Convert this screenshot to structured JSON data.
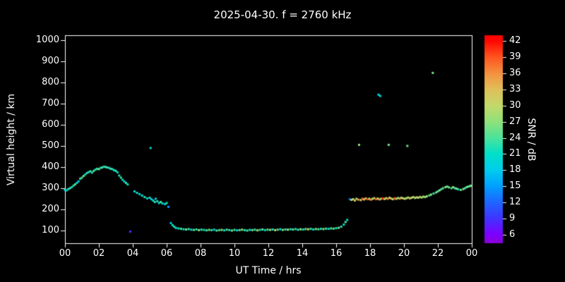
{
  "page": {
    "background": "#000000",
    "text_color": "#ffffff",
    "axis_color": "#ffffff"
  },
  "chart_data": {
    "type": "scatter",
    "title": "2025-04-30. f = 2760 kHz",
    "xlabel": "UT Time / hrs",
    "ylabel": "Virtual height / km",
    "colorbar_label": "SNR / dB",
    "grid": false,
    "xlim": [
      0,
      24
    ],
    "ylim": [
      40,
      1023
    ],
    "xticks": [
      {
        "v": 0,
        "label": "00"
      },
      {
        "v": 2,
        "label": "02"
      },
      {
        "v": 4,
        "label": "04"
      },
      {
        "v": 6,
        "label": "06"
      },
      {
        "v": 8,
        "label": "08"
      },
      {
        "v": 10,
        "label": "10"
      },
      {
        "v": 12,
        "label": "12"
      },
      {
        "v": 14,
        "label": "14"
      },
      {
        "v": 16,
        "label": "16"
      },
      {
        "v": 18,
        "label": "18"
      },
      {
        "v": 20,
        "label": "20"
      },
      {
        "v": 22,
        "label": "22"
      },
      {
        "v": 24,
        "label": "00"
      }
    ],
    "yticks": [
      {
        "v": 100,
        "label": "100"
      },
      {
        "v": 200,
        "label": "200"
      },
      {
        "v": 300,
        "label": "300"
      },
      {
        "v": 400,
        "label": "400"
      },
      {
        "v": 500,
        "label": "500"
      },
      {
        "v": 600,
        "label": "600"
      },
      {
        "v": 700,
        "label": "700"
      },
      {
        "v": 800,
        "label": "800"
      },
      {
        "v": 900,
        "label": "900"
      },
      {
        "v": 1000,
        "label": "1000"
      }
    ],
    "colorbar": {
      "vmin": 4.4,
      "vmax": 43.1,
      "ticks": [
        6,
        9,
        12,
        15,
        18,
        21,
        24,
        27,
        30,
        33,
        36,
        39,
        42
      ],
      "stops": [
        [
          4.4,
          "#8b00d6"
        ],
        [
          6,
          "#7d00ff"
        ],
        [
          9,
          "#4133ff"
        ],
        [
          12,
          "#1f66ff"
        ],
        [
          15,
          "#009fff"
        ],
        [
          18,
          "#00cdee"
        ],
        [
          21,
          "#00e0c8"
        ],
        [
          24,
          "#4ce39b"
        ],
        [
          27,
          "#8fe27a"
        ],
        [
          30,
          "#c3d96a"
        ],
        [
          33,
          "#e0c05a"
        ],
        [
          36,
          "#f49140"
        ],
        [
          39,
          "#ff5520"
        ],
        [
          42,
          "#ff0800"
        ],
        [
          43.1,
          "#ff0000"
        ]
      ]
    },
    "points": [
      [
        0.0,
        292,
        21
      ],
      [
        0.1,
        290,
        19
      ],
      [
        0.2,
        296,
        22
      ],
      [
        0.3,
        300,
        24
      ],
      [
        0.4,
        305,
        20
      ],
      [
        0.5,
        312,
        23
      ],
      [
        0.6,
        318,
        25
      ],
      [
        0.7,
        325,
        21
      ],
      [
        0.8,
        332,
        18
      ],
      [
        0.9,
        345,
        22
      ],
      [
        1.0,
        350,
        24
      ],
      [
        1.1,
        358,
        26
      ],
      [
        1.2,
        365,
        21
      ],
      [
        1.3,
        372,
        23
      ],
      [
        1.4,
        376,
        20
      ],
      [
        1.5,
        380,
        24
      ],
      [
        1.6,
        374,
        22
      ],
      [
        1.7,
        382,
        25
      ],
      [
        1.8,
        388,
        21
      ],
      [
        1.9,
        392,
        23
      ],
      [
        2.0,
        390,
        26
      ],
      [
        2.1,
        396,
        22
      ],
      [
        2.2,
        398,
        24
      ],
      [
        2.3,
        402,
        21
      ],
      [
        2.4,
        400,
        25
      ],
      [
        2.5,
        398,
        23
      ],
      [
        2.6,
        396,
        20
      ],
      [
        2.7,
        392,
        24
      ],
      [
        2.8,
        390,
        22
      ],
      [
        2.9,
        385,
        21
      ],
      [
        3.0,
        382,
        23
      ],
      [
        3.1,
        375,
        20
      ],
      [
        3.2,
        360,
        22
      ],
      [
        3.3,
        350,
        24
      ],
      [
        3.4,
        340,
        21
      ],
      [
        3.5,
        332,
        19
      ],
      [
        3.6,
        325,
        23
      ],
      [
        3.7,
        318,
        21
      ],
      [
        3.85,
        95,
        9
      ],
      [
        4.1,
        285,
        20
      ],
      [
        4.25,
        278,
        22
      ],
      [
        4.4,
        272,
        19
      ],
      [
        4.55,
        265,
        21
      ],
      [
        4.7,
        258,
        23
      ],
      [
        4.85,
        252,
        20
      ],
      [
        5.0,
        255,
        22
      ],
      [
        5.05,
        490,
        20
      ],
      [
        5.1,
        248,
        18
      ],
      [
        5.2,
        242,
        21
      ],
      [
        5.3,
        235,
        23
      ],
      [
        5.35,
        250,
        19
      ],
      [
        5.45,
        238,
        22
      ],
      [
        5.55,
        230,
        20
      ],
      [
        5.65,
        235,
        24
      ],
      [
        5.75,
        228,
        21
      ],
      [
        5.9,
        225,
        19
      ],
      [
        6.0,
        230,
        22
      ],
      [
        6.1,
        212,
        15
      ],
      [
        6.25,
        135,
        18
      ],
      [
        6.35,
        125,
        21
      ],
      [
        6.45,
        118,
        23
      ],
      [
        6.55,
        112,
        20
      ],
      [
        6.7,
        110,
        22
      ],
      [
        6.85,
        108,
        24
      ],
      [
        7.0,
        106,
        21
      ],
      [
        7.15,
        105,
        26
      ],
      [
        7.3,
        107,
        23
      ],
      [
        7.45,
        104,
        20
      ],
      [
        7.6,
        103,
        25
      ],
      [
        7.75,
        105,
        22
      ],
      [
        7.9,
        102,
        27
      ],
      [
        8.05,
        104,
        23
      ],
      [
        8.2,
        103,
        21
      ],
      [
        8.35,
        101,
        24
      ],
      [
        8.5,
        103,
        26
      ],
      [
        8.65,
        102,
        22
      ],
      [
        8.8,
        104,
        20
      ],
      [
        8.95,
        100,
        25
      ],
      [
        9.1,
        102,
        23
      ],
      [
        9.25,
        103,
        27
      ],
      [
        9.4,
        101,
        21
      ],
      [
        9.55,
        104,
        24
      ],
      [
        9.7,
        102,
        22
      ],
      [
        9.85,
        100,
        26
      ],
      [
        10.0,
        103,
        23
      ],
      [
        10.15,
        101,
        20
      ],
      [
        10.3,
        102,
        25
      ],
      [
        10.45,
        104,
        27
      ],
      [
        10.6,
        102,
        22
      ],
      [
        10.75,
        100,
        24
      ],
      [
        10.9,
        103,
        21
      ],
      [
        11.05,
        102,
        26
      ],
      [
        11.2,
        104,
        23
      ],
      [
        11.35,
        101,
        28
      ],
      [
        11.5,
        103,
        22
      ],
      [
        11.65,
        105,
        25
      ],
      [
        11.8,
        102,
        21
      ],
      [
        11.95,
        104,
        24
      ],
      [
        12.1,
        103,
        27
      ],
      [
        12.25,
        105,
        22
      ],
      [
        12.4,
        102,
        30
      ],
      [
        12.55,
        104,
        24
      ],
      [
        12.7,
        106,
        21
      ],
      [
        12.85,
        103,
        26
      ],
      [
        13.0,
        105,
        23
      ],
      [
        13.15,
        104,
        28
      ],
      [
        13.3,
        106,
        22
      ],
      [
        13.45,
        105,
        25
      ],
      [
        13.6,
        107,
        21
      ],
      [
        13.75,
        104,
        24
      ],
      [
        13.9,
        106,
        27
      ],
      [
        14.05,
        105,
        22
      ],
      [
        14.2,
        107,
        25
      ],
      [
        14.35,
        106,
        30
      ],
      [
        14.5,
        108,
        23
      ],
      [
        14.65,
        105,
        21
      ],
      [
        14.8,
        107,
        26
      ],
      [
        14.95,
        106,
        24
      ],
      [
        15.1,
        108,
        22
      ],
      [
        15.25,
        107,
        27
      ],
      [
        15.4,
        109,
        23
      ],
      [
        15.55,
        108,
        21
      ],
      [
        15.7,
        110,
        25
      ],
      [
        15.85,
        109,
        24
      ],
      [
        16.0,
        111,
        22
      ],
      [
        16.15,
        113,
        26
      ],
      [
        16.3,
        118,
        23
      ],
      [
        16.45,
        128,
        21
      ],
      [
        16.55,
        140,
        24
      ],
      [
        16.65,
        150,
        20
      ],
      [
        16.8,
        248,
        12
      ],
      [
        16.9,
        245,
        27
      ],
      [
        17.0,
        248,
        30
      ],
      [
        17.1,
        242,
        33
      ],
      [
        17.2,
        250,
        28
      ],
      [
        17.3,
        246,
        36
      ],
      [
        17.35,
        505,
        27
      ],
      [
        17.45,
        244,
        31
      ],
      [
        17.55,
        250,
        38
      ],
      [
        17.65,
        247,
        29
      ],
      [
        17.75,
        252,
        34
      ],
      [
        17.85,
        248,
        40
      ],
      [
        17.95,
        250,
        30
      ],
      [
        18.05,
        246,
        36
      ],
      [
        18.15,
        250,
        28
      ],
      [
        18.25,
        253,
        33
      ],
      [
        18.35,
        248,
        39
      ],
      [
        18.45,
        251,
        30
      ],
      [
        18.5,
        742,
        21
      ],
      [
        18.55,
        247,
        35
      ],
      [
        18.6,
        736,
        19
      ],
      [
        18.65,
        250,
        28
      ],
      [
        18.75,
        252,
        41
      ],
      [
        18.85,
        249,
        32
      ],
      [
        18.95,
        253,
        29
      ],
      [
        19.05,
        250,
        37
      ],
      [
        19.1,
        505,
        26
      ],
      [
        19.15,
        255,
        30
      ],
      [
        19.25,
        251,
        34
      ],
      [
        19.35,
        248,
        28
      ],
      [
        19.45,
        252,
        39
      ],
      [
        19.55,
        250,
        31
      ],
      [
        19.65,
        254,
        27
      ],
      [
        19.75,
        251,
        35
      ],
      [
        19.85,
        255,
        29
      ],
      [
        19.95,
        252,
        33
      ],
      [
        20.05,
        250,
        28
      ],
      [
        20.15,
        253,
        31
      ],
      [
        20.2,
        500,
        25
      ],
      [
        20.25,
        256,
        27
      ],
      [
        20.35,
        252,
        34
      ],
      [
        20.45,
        255,
        29
      ],
      [
        20.55,
        258,
        32
      ],
      [
        20.65,
        254,
        27
      ],
      [
        20.75,
        257,
        30
      ],
      [
        20.85,
        255,
        28
      ],
      [
        20.95,
        259,
        33
      ],
      [
        21.05,
        256,
        27
      ],
      [
        21.15,
        260,
        30
      ],
      [
        21.25,
        258,
        26
      ],
      [
        21.35,
        262,
        28
      ],
      [
        21.5,
        266,
        24
      ],
      [
        21.6,
        270,
        27
      ],
      [
        21.7,
        845,
        26
      ],
      [
        21.75,
        275,
        23
      ],
      [
        21.9,
        280,
        26
      ],
      [
        22.0,
        285,
        24
      ],
      [
        22.1,
        290,
        27
      ],
      [
        22.2,
        295,
        23
      ],
      [
        22.3,
        300,
        25
      ],
      [
        22.45,
        305,
        28
      ],
      [
        22.55,
        308,
        24
      ],
      [
        22.65,
        304,
        26
      ],
      [
        22.8,
        300,
        23
      ],
      [
        22.9,
        305,
        27
      ],
      [
        23.0,
        300,
        24
      ],
      [
        23.1,
        298,
        26
      ],
      [
        23.2,
        295,
        22
      ],
      [
        23.35,
        292,
        25
      ],
      [
        23.5,
        296,
        27
      ],
      [
        23.6,
        300,
        23
      ],
      [
        23.7,
        305,
        26
      ],
      [
        23.8,
        308,
        24
      ],
      [
        23.9,
        310,
        27
      ],
      [
        23.95,
        312,
        25
      ]
    ]
  }
}
